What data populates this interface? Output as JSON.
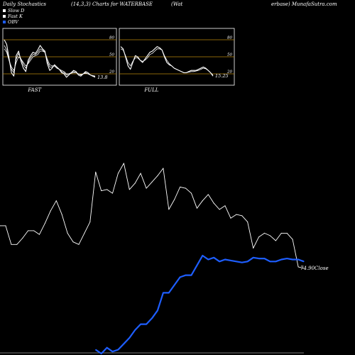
{
  "header": {
    "left": "Daily Stochastics",
    "center": "(14,3,3) Charts for WATERBASE",
    "right_a": "(Wat",
    "right_b": "erbase) MunafaSutra.com"
  },
  "legend": [
    {
      "label": "Slow  D",
      "color": "#ffffff"
    },
    {
      "label": "Fast K",
      "color": "#ffffff"
    },
    {
      "label": "OBV",
      "color": "#1e5eff"
    }
  ],
  "colors": {
    "background": "#000000",
    "price": "#ffffff",
    "obv": "#1e5eff",
    "level": "#b8860b"
  },
  "chart_data": [
    {
      "type": "line",
      "title": "FAST",
      "yticks": [
        20,
        50,
        80
      ],
      "ylim": [
        0,
        100
      ],
      "last_label": "13.8",
      "series": [
        {
          "values": [
            80,
            72,
            48,
            22,
            16,
            52,
            60,
            42,
            30,
            24,
            44,
            52,
            58,
            56,
            62,
            70,
            64,
            60,
            38,
            26,
            30,
            36,
            32,
            28,
            22,
            20,
            14,
            18,
            22,
            26,
            24,
            18,
            16,
            20,
            24,
            22,
            18,
            16,
            14
          ]
        },
        {
          "values": [
            70,
            62,
            44,
            28,
            22,
            46,
            56,
            46,
            36,
            30,
            40,
            48,
            54,
            54,
            58,
            64,
            62,
            58,
            42,
            32,
            32,
            34,
            30,
            28,
            24,
            22,
            18,
            20,
            22,
            24,
            22,
            20,
            18,
            20,
            22,
            20,
            18,
            16,
            15
          ]
        },
        {
          "values": [
            64,
            58,
            44,
            32,
            26,
            40,
            50,
            46,
            40,
            34,
            38,
            44,
            50,
            52,
            54,
            60,
            60,
            58,
            46,
            36,
            34,
            34,
            30,
            28,
            26,
            24,
            20,
            20,
            21,
            22,
            22,
            20,
            19,
            20,
            21,
            20,
            18,
            17,
            16
          ]
        }
      ]
    },
    {
      "type": "line",
      "title": "FULL",
      "yticks": [
        20,
        50,
        80
      ],
      "ylim": [
        0,
        100
      ],
      "last_label": "15.25",
      "series": [
        {
          "values": [
            68,
            64,
            50,
            34,
            28,
            40,
            52,
            50,
            44,
            40,
            46,
            52,
            58,
            60,
            64,
            68,
            66,
            62,
            50,
            40,
            36,
            34,
            30,
            28,
            26,
            24,
            22,
            22,
            24,
            26,
            26,
            26,
            28,
            30,
            32,
            30,
            26,
            22,
            16
          ]
        },
        {
          "values": [
            64,
            62,
            52,
            40,
            34,
            42,
            48,
            48,
            44,
            42,
            44,
            48,
            54,
            56,
            60,
            64,
            64,
            62,
            52,
            44,
            38,
            34,
            30,
            28,
            26,
            24,
            22,
            22,
            23,
            24,
            24,
            25,
            26,
            28,
            30,
            29,
            26,
            22,
            18
          ]
        }
      ]
    },
    {
      "type": "line",
      "series": [
        {
          "name": "Close",
          "values": [
            92.0,
            92.0,
            84.5,
            84.5,
            87.0,
            90.0,
            90.0,
            88.5,
            93.0,
            98.0,
            102.0,
            96.5,
            89.0,
            85.5,
            84.5,
            89.0,
            93.5,
            113.5,
            106.0,
            106.5,
            105.0,
            113.0,
            117.0,
            106.5,
            109.0,
            113.0,
            107.0,
            109.5,
            112.0,
            115.0,
            98.5,
            102.5,
            107.5,
            107.0,
            105.0,
            99.0,
            102.0,
            104.5,
            101.0,
            98.5,
            100.0,
            95.0,
            96.5,
            96.0,
            93.5,
            83.0,
            87.5,
            89.0,
            88.0,
            86.0,
            89.0,
            89.0,
            86.5,
            75.5,
            74.9
          ]
        },
        {
          "name": "OBV",
          "values": [
            null,
            null,
            null,
            null,
            null,
            null,
            null,
            null,
            null,
            null,
            null,
            null,
            null,
            null,
            null,
            null,
            null,
            -6,
            -10,
            -4,
            -8,
            -6,
            0,
            6,
            14,
            20,
            20,
            26,
            34,
            52,
            52,
            60,
            68,
            70,
            70,
            80,
            90,
            86,
            88,
            84,
            86,
            85,
            84,
            83,
            84,
            88,
            87,
            87,
            84,
            84,
            86,
            87,
            86,
            86,
            84
          ]
        }
      ],
      "last_close_label": "74.90Close"
    }
  ]
}
